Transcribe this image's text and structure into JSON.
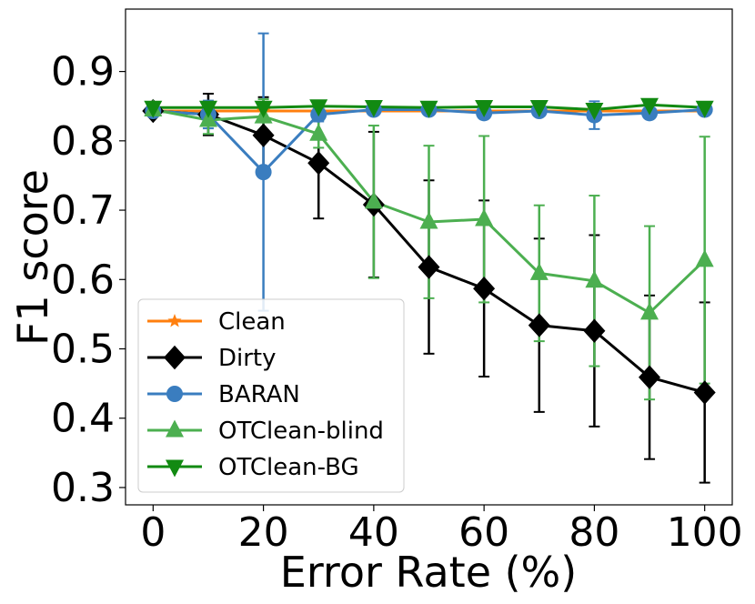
{
  "chart_data": {
    "type": "line",
    "title": "",
    "xlabel": "Error Rate (%)",
    "ylabel": "F1 score",
    "xlim": [
      -5,
      105
    ],
    "ylim": [
      0.275,
      0.99
    ],
    "xticks": [
      0,
      20,
      40,
      60,
      80,
      100
    ],
    "yticks": [
      0.3,
      0.4,
      0.5,
      0.6,
      0.7,
      0.8,
      0.9
    ],
    "xtick_labels": [
      "0",
      "20",
      "40",
      "60",
      "80",
      "100"
    ],
    "ytick_labels": [
      "0.3",
      "0.4",
      "0.5",
      "0.6",
      "0.7",
      "0.8",
      "0.9"
    ],
    "legend_position": "bottom-left",
    "x": [
      0,
      10,
      20,
      30,
      40,
      50,
      60,
      70,
      80,
      90,
      100
    ],
    "series": [
      {
        "name": "Clean",
        "color": "#ff7f0e",
        "marker": "star",
        "values": [
          0.843,
          0.843,
          0.843,
          0.843,
          0.843,
          0.843,
          0.843,
          0.843,
          0.843,
          0.843,
          0.843
        ],
        "errors": [
          0,
          0,
          0,
          0,
          0,
          0,
          0,
          0,
          0,
          0,
          0
        ]
      },
      {
        "name": "Dirty",
        "color": "#000000",
        "marker": "diamond",
        "values": [
          0.843,
          0.838,
          0.808,
          0.768,
          0.708,
          0.618,
          0.587,
          0.534,
          0.526,
          0.459,
          0.437
        ],
        "errors": [
          0,
          0.03,
          0.055,
          0.08,
          0.105,
          0.125,
          0.127,
          0.125,
          0.138,
          0.118,
          0.13
        ]
      },
      {
        "name": "BARAN",
        "color": "#3a7dbf",
        "marker": "circle",
        "values": [
          0.843,
          0.838,
          0.755,
          0.838,
          0.845,
          0.845,
          0.84,
          0.843,
          0.837,
          0.84,
          0.845
        ],
        "errors": [
          0,
          0.02,
          0.2,
          0.01,
          0.005,
          0.005,
          0.005,
          0.005,
          0.02,
          0.005,
          0.005
        ]
      },
      {
        "name": "OTClean-blind",
        "color": "#4caf50",
        "marker": "triangle-up",
        "values": [
          0.845,
          0.83,
          0.835,
          0.81,
          0.712,
          0.683,
          0.687,
          0.609,
          0.598,
          0.552,
          0.628
        ],
        "errors": [
          0,
          0.02,
          0.025,
          0.02,
          0.11,
          0.11,
          0.12,
          0.098,
          0.123,
          0.125,
          0.178
        ]
      },
      {
        "name": "OTClean-BG",
        "color": "#128a12",
        "marker": "triangle-down",
        "values": [
          0.848,
          0.848,
          0.848,
          0.85,
          0.849,
          0.848,
          0.849,
          0.849,
          0.845,
          0.852,
          0.848
        ],
        "errors": [
          0,
          0.005,
          0.005,
          0.005,
          0.005,
          0.005,
          0.005,
          0.005,
          0.005,
          0.005,
          0.005
        ]
      }
    ]
  }
}
